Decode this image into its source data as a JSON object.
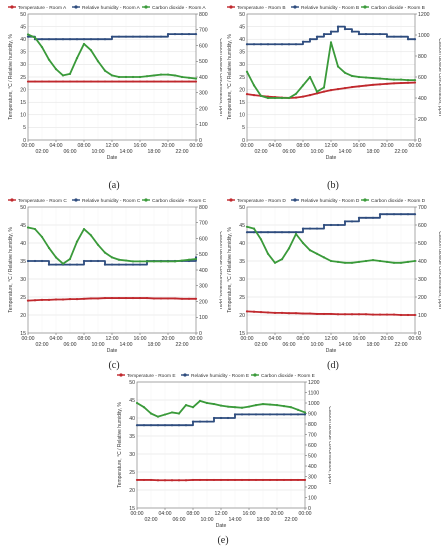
{
  "series_colors": {
    "temperature": "#c0282d",
    "humidity": "#2e4c7e",
    "co2": "#3a9a3a"
  },
  "x_ticks_upper": [
    "00:00",
    "04:00",
    "08:00",
    "12:00",
    "16:00",
    "20:00",
    "00:00"
  ],
  "x_ticks_lower": [
    "02:00",
    "06:00",
    "10:00",
    "14:00",
    "18:00",
    "22:00"
  ],
  "xlabel": "Date",
  "ylabel_left": "Temperature, °C / Relative humidity, %",
  "ylabel_right": "Carbon dioxide concentration, ppm",
  "captions": [
    "(a)",
    "(b)",
    "(c)",
    "(d)",
    "(e)"
  ],
  "chart_data": [
    {
      "type": "line",
      "caption": "(a)",
      "legend": [
        "Temperature - Room A",
        "Relative humidity - Room A",
        "Carbon dioxide - Room A"
      ],
      "left_ylim": [
        0,
        50
      ],
      "left_ticks": [
        0,
        5,
        10,
        15,
        20,
        25,
        30,
        35,
        40,
        45,
        50
      ],
      "right_ylim": [
        0,
        800
      ],
      "right_ticks": [
        0,
        100,
        200,
        300,
        400,
        500,
        600,
        700,
        800
      ],
      "x": [
        0,
        1,
        2,
        3,
        4,
        5,
        6,
        7,
        8,
        9,
        10,
        11,
        12,
        13,
        14,
        15,
        16,
        17,
        18,
        19,
        20,
        21,
        22,
        23,
        24
      ],
      "series": [
        {
          "name": "Temperature - Room A",
          "axis": "left",
          "values": [
            23.2,
            23.2,
            23.2,
            23.2,
            23.2,
            23.2,
            23.2,
            23.2,
            23.2,
            23.2,
            23.2,
            23.2,
            23.2,
            23.2,
            23.2,
            23.2,
            23.2,
            23.2,
            23.2,
            23.2,
            23.2,
            23.2,
            23.2,
            23.2,
            23.2
          ]
        },
        {
          "name": "Relative humidity - Room A",
          "axis": "left",
          "values": [
            41,
            40,
            40,
            40,
            40,
            40,
            40,
            40,
            40,
            40,
            40,
            40,
            41,
            41,
            41,
            41,
            41,
            41,
            41,
            41,
            42,
            42,
            42,
            42,
            42
          ]
        },
        {
          "name": "Carbon dioxide - Room A",
          "axis": "right",
          "values": [
            670,
            650,
            590,
            510,
            450,
            410,
            420,
            520,
            610,
            570,
            500,
            440,
            410,
            400,
            400,
            400,
            400,
            405,
            410,
            415,
            415,
            410,
            400,
            395,
            390
          ]
        }
      ]
    },
    {
      "type": "line",
      "caption": "(b)",
      "legend": [
        "Temperature - Room B",
        "Relative humidity - Room B",
        "Carbon dioxide - Room B"
      ],
      "left_ylim": [
        0,
        50
      ],
      "left_ticks": [
        0,
        5,
        10,
        15,
        20,
        25,
        30,
        35,
        40,
        45,
        50
      ],
      "right_ylim": [
        0,
        1200
      ],
      "right_ticks": [
        0,
        200,
        400,
        600,
        800,
        1000,
        1200
      ],
      "x": [
        0,
        1,
        2,
        3,
        4,
        5,
        6,
        7,
        8,
        9,
        10,
        11,
        12,
        13,
        14,
        15,
        16,
        17,
        18,
        19,
        20,
        21,
        22,
        23,
        24
      ],
      "series": [
        {
          "name": "Temperature - Room B",
          "axis": "left",
          "values": [
            18.2,
            17.8,
            17.5,
            17.2,
            17,
            16.8,
            16.7,
            16.8,
            17.2,
            17.8,
            18.5,
            19.2,
            19.8,
            20.2,
            20.6,
            21,
            21.3,
            21.6,
            21.9,
            22.1,
            22.3,
            22.5,
            22.6,
            22.7,
            22.8
          ]
        },
        {
          "name": "Relative humidity - Room B",
          "axis": "left",
          "values": [
            38,
            38,
            38,
            38,
            38,
            38,
            38,
            38,
            39,
            40,
            41,
            42,
            43,
            45,
            44,
            43,
            42,
            42,
            42,
            42,
            41,
            41,
            41,
            40,
            40
          ]
        },
        {
          "name": "Carbon dioxide - Room B",
          "axis": "right",
          "values": [
            650,
            520,
            420,
            400,
            400,
            400,
            400,
            440,
            520,
            600,
            460,
            500,
            930,
            700,
            640,
            610,
            600,
            595,
            590,
            585,
            580,
            575,
            575,
            570,
            570
          ]
        }
      ]
    },
    {
      "type": "line",
      "caption": "(c)",
      "legend": [
        "Temperature - Room C",
        "Relative humidity - Room C",
        "Carbon dioxide - Room C"
      ],
      "left_ylim": [
        15,
        50
      ],
      "left_ticks": [
        15,
        20,
        25,
        30,
        35,
        40,
        45,
        50
      ],
      "right_ylim": [
        0,
        800
      ],
      "right_ticks": [
        0,
        100,
        200,
        300,
        400,
        500,
        600,
        700,
        800
      ],
      "x": [
        0,
        1,
        2,
        3,
        4,
        5,
        6,
        7,
        8,
        9,
        10,
        11,
        12,
        13,
        14,
        15,
        16,
        17,
        18,
        19,
        20,
        21,
        22,
        23,
        24
      ],
      "series": [
        {
          "name": "Temperature - Room C",
          "axis": "left",
          "values": [
            24,
            24.1,
            24.2,
            24.2,
            24.3,
            24.3,
            24.4,
            24.4,
            24.5,
            24.6,
            24.6,
            24.7,
            24.7,
            24.7,
            24.7,
            24.7,
            24.7,
            24.7,
            24.6,
            24.6,
            24.6,
            24.6,
            24.5,
            24.5,
            24.5
          ]
        },
        {
          "name": "Relative humidity - Room C",
          "axis": "left",
          "values": [
            35,
            35,
            35,
            34,
            34,
            34,
            34,
            34,
            35,
            35,
            35,
            34,
            34,
            34,
            34,
            34,
            34,
            35,
            35,
            35,
            35,
            35,
            35,
            35,
            36
          ]
        },
        {
          "name": "Carbon dioxide - Room C",
          "axis": "right",
          "values": [
            670,
            660,
            610,
            540,
            480,
            440,
            470,
            580,
            660,
            620,
            560,
            510,
            480,
            465,
            460,
            455,
            455,
            455,
            455,
            455,
            455,
            455,
            460,
            465,
            470
          ]
        }
      ]
    },
    {
      "type": "line",
      "caption": "(d)",
      "legend": [
        "Temperature - Room D",
        "Relative humidity - Room D",
        "Carbon dioxide - Room D"
      ],
      "left_ylim": [
        15,
        50
      ],
      "left_ticks": [
        15,
        20,
        25,
        30,
        35,
        40,
        45,
        50
      ],
      "right_ylim": [
        0,
        700
      ],
      "right_ticks": [
        0,
        100,
        200,
        300,
        400,
        500,
        600,
        700
      ],
      "x": [
        0,
        1,
        2,
        3,
        4,
        5,
        6,
        7,
        8,
        9,
        10,
        11,
        12,
        13,
        14,
        15,
        16,
        17,
        18,
        19,
        20,
        21,
        22,
        23,
        24
      ],
      "series": [
        {
          "name": "Temperature - Room D",
          "axis": "left",
          "values": [
            21,
            20.9,
            20.8,
            20.7,
            20.6,
            20.6,
            20.5,
            20.5,
            20.4,
            20.4,
            20.3,
            20.3,
            20.3,
            20.2,
            20.2,
            20.2,
            20.2,
            20.2,
            20.1,
            20.1,
            20.1,
            20.1,
            20,
            20,
            20
          ]
        },
        {
          "name": "Relative humidity - Room D",
          "axis": "left",
          "values": [
            43,
            43,
            43,
            43,
            43,
            43,
            43,
            43,
            44,
            44,
            44,
            45,
            45,
            45,
            46,
            46,
            47,
            47,
            47,
            48,
            48,
            48,
            48,
            48,
            48
          ]
        },
        {
          "name": "Carbon dioxide - Room D",
          "axis": "right",
          "values": [
            590,
            580,
            520,
            440,
            390,
            410,
            470,
            550,
            500,
            460,
            440,
            420,
            400,
            395,
            390,
            390,
            395,
            400,
            405,
            400,
            395,
            390,
            390,
            395,
            400
          ]
        }
      ]
    },
    {
      "type": "line",
      "caption": "(e)",
      "legend": [
        "Temperature - Room E",
        "Relative humidity - Room E",
        "Carbon dioxide - Room E"
      ],
      "left_ylim": [
        15,
        50
      ],
      "left_ticks": [
        15,
        20,
        25,
        30,
        35,
        40,
        45,
        50
      ],
      "right_ylim": [
        0,
        1200
      ],
      "right_ticks": [
        0,
        100,
        200,
        300,
        400,
        500,
        600,
        700,
        800,
        900,
        1000,
        1100,
        1200
      ],
      "x": [
        0,
        1,
        2,
        3,
        4,
        5,
        6,
        7,
        8,
        9,
        10,
        11,
        12,
        13,
        14,
        15,
        16,
        17,
        18,
        19,
        20,
        21,
        22,
        23,
        24
      ],
      "series": [
        {
          "name": "Temperature - Room E",
          "axis": "left",
          "values": [
            22.8,
            22.8,
            22.8,
            22.7,
            22.7,
            22.7,
            22.7,
            22.7,
            22.8,
            22.8,
            22.8,
            22.8,
            22.8,
            22.8,
            22.8,
            22.8,
            22.8,
            22.8,
            22.8,
            22.8,
            22.8,
            22.8,
            22.8,
            22.8,
            22.8
          ]
        },
        {
          "name": "Relative humidity - Room E",
          "axis": "left",
          "values": [
            38,
            38,
            38,
            38,
            38,
            38,
            38,
            38,
            39,
            39,
            39,
            40,
            40,
            40,
            41,
            41,
            41,
            41,
            41,
            41,
            41,
            41,
            41,
            41,
            41
          ]
        },
        {
          "name": "Carbon dioxide - Room E",
          "axis": "right",
          "values": [
            1000,
            960,
            900,
            870,
            890,
            910,
            900,
            980,
            960,
            1020,
            1000,
            990,
            975,
            965,
            960,
            955,
            965,
            980,
            990,
            985,
            980,
            970,
            960,
            935,
            910
          ]
        }
      ]
    }
  ]
}
